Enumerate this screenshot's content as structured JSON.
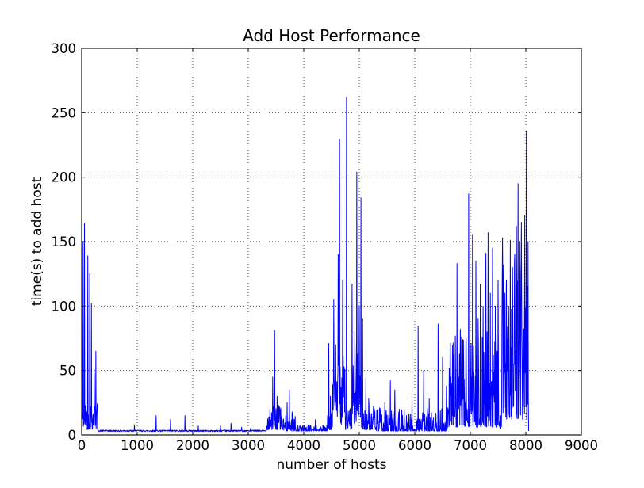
{
  "figure": {
    "background": "#ffffff"
  },
  "chart_data": {
    "type": "line",
    "title": "Add Host Performance",
    "xlabel": "number of hosts",
    "ylabel": "time(s) to add host",
    "xlim": [
      0,
      9000
    ],
    "ylim": [
      0,
      300
    ],
    "xticks": [
      0,
      1000,
      2000,
      3000,
      4000,
      5000,
      6000,
      7000,
      8000,
      9000
    ],
    "yticks": [
      0,
      50,
      100,
      150,
      200,
      250,
      300
    ],
    "grid": {
      "style": "dotted",
      "color": "#000000",
      "on": true
    },
    "line_color": "#0000ff",
    "background": "#ffffff",
    "baseline": 3,
    "x_start": 10,
    "x_end": 8050,
    "x_step": 5,
    "seed": 42,
    "noise_bands": [
      {
        "x0": 10,
        "x1": 290,
        "base": 4,
        "amp": 22,
        "pow": 1.2
      },
      {
        "x0": 290,
        "x1": 3330,
        "base": 2.6,
        "amp": 1.2,
        "pow": 1
      },
      {
        "x0": 3330,
        "x1": 3600,
        "base": 4,
        "amp": 20,
        "pow": 2
      },
      {
        "x0": 3600,
        "x1": 3860,
        "base": 3,
        "amp": 12,
        "pow": 2
      },
      {
        "x0": 3860,
        "x1": 4430,
        "base": 3,
        "amp": 5,
        "pow": 3
      },
      {
        "x0": 4430,
        "x1": 4520,
        "base": 4,
        "amp": 20,
        "pow": 2
      },
      {
        "x0": 4520,
        "x1": 4750,
        "base": 8,
        "amp": 55,
        "pow": 1.3
      },
      {
        "x0": 4750,
        "x1": 4880,
        "base": 4,
        "amp": 18,
        "pow": 2
      },
      {
        "x0": 4880,
        "x1": 5040,
        "base": 8,
        "amp": 55,
        "pow": 1.3
      },
      {
        "x0": 5040,
        "x1": 5300,
        "base": 4,
        "amp": 20,
        "pow": 2.2
      },
      {
        "x0": 5300,
        "x1": 6600,
        "base": 3,
        "amp": 18,
        "pow": 3.5
      },
      {
        "x0": 6600,
        "x1": 7520,
        "base": 6,
        "amp": 75,
        "pow": 2.2
      },
      {
        "x0": 7520,
        "x1": 7565,
        "base": 5,
        "amp": 12,
        "pow": 2
      },
      {
        "x0": 7565,
        "x1": 8050,
        "base": 12,
        "amp": 125,
        "pow": 1.8
      }
    ],
    "peaks": [
      [
        25,
        150
      ],
      [
        50,
        164
      ],
      [
        110,
        139
      ],
      [
        145,
        125
      ],
      [
        175,
        102
      ],
      [
        225,
        48
      ],
      [
        255,
        65
      ],
      [
        950,
        8
      ],
      [
        1340,
        15
      ],
      [
        1600,
        12
      ],
      [
        1860,
        15
      ],
      [
        2100,
        7
      ],
      [
        2500,
        7
      ],
      [
        2690,
        9
      ],
      [
        2880,
        6
      ],
      [
        3040,
        5
      ],
      [
        3390,
        20
      ],
      [
        3440,
        45
      ],
      [
        3475,
        81
      ],
      [
        3520,
        30
      ],
      [
        3560,
        22
      ],
      [
        3700,
        25
      ],
      [
        3740,
        35
      ],
      [
        3790,
        18
      ],
      [
        4210,
        12
      ],
      [
        4450,
        71
      ],
      [
        4480,
        30
      ],
      [
        4540,
        105
      ],
      [
        4575,
        70
      ],
      [
        4620,
        140
      ],
      [
        4645,
        229
      ],
      [
        4700,
        120
      ],
      [
        4771,
        262
      ],
      [
        4870,
        117
      ],
      [
        4920,
        80
      ],
      [
        4957,
        204
      ],
      [
        5000,
        100
      ],
      [
        5030,
        184
      ],
      [
        5060,
        90
      ],
      [
        5120,
        45
      ],
      [
        5170,
        28
      ],
      [
        5380,
        18
      ],
      [
        5460,
        25
      ],
      [
        5560,
        42
      ],
      [
        5640,
        35
      ],
      [
        5720,
        20
      ],
      [
        5850,
        15
      ],
      [
        5950,
        30
      ],
      [
        6060,
        84
      ],
      [
        6160,
        50
      ],
      [
        6260,
        28
      ],
      [
        6420,
        86
      ],
      [
        6500,
        60
      ],
      [
        6570,
        38
      ],
      [
        6650,
        45
      ],
      [
        6700,
        62
      ],
      [
        6760,
        133
      ],
      [
        6820,
        82
      ],
      [
        6880,
        55
      ],
      [
        6920,
        70
      ],
      [
        6970,
        187
      ],
      [
        7040,
        155
      ],
      [
        7100,
        135
      ],
      [
        7140,
        90
      ],
      [
        7180,
        117
      ],
      [
        7230,
        100
      ],
      [
        7280,
        141
      ],
      [
        7320,
        157
      ],
      [
        7360,
        110
      ],
      [
        7400,
        145
      ],
      [
        7450,
        100
      ],
      [
        7500,
        120
      ],
      [
        7580,
        153
      ],
      [
        7620,
        110
      ],
      [
        7650,
        120
      ],
      [
        7690,
        100
      ],
      [
        7720,
        151
      ],
      [
        7760,
        130
      ],
      [
        7800,
        140
      ],
      [
        7830,
        162
      ],
      [
        7860,
        195
      ],
      [
        7890,
        150
      ],
      [
        7920,
        165
      ],
      [
        7950,
        140
      ],
      [
        7980,
        170
      ],
      [
        8010,
        236
      ],
      [
        8040,
        150
      ]
    ]
  }
}
